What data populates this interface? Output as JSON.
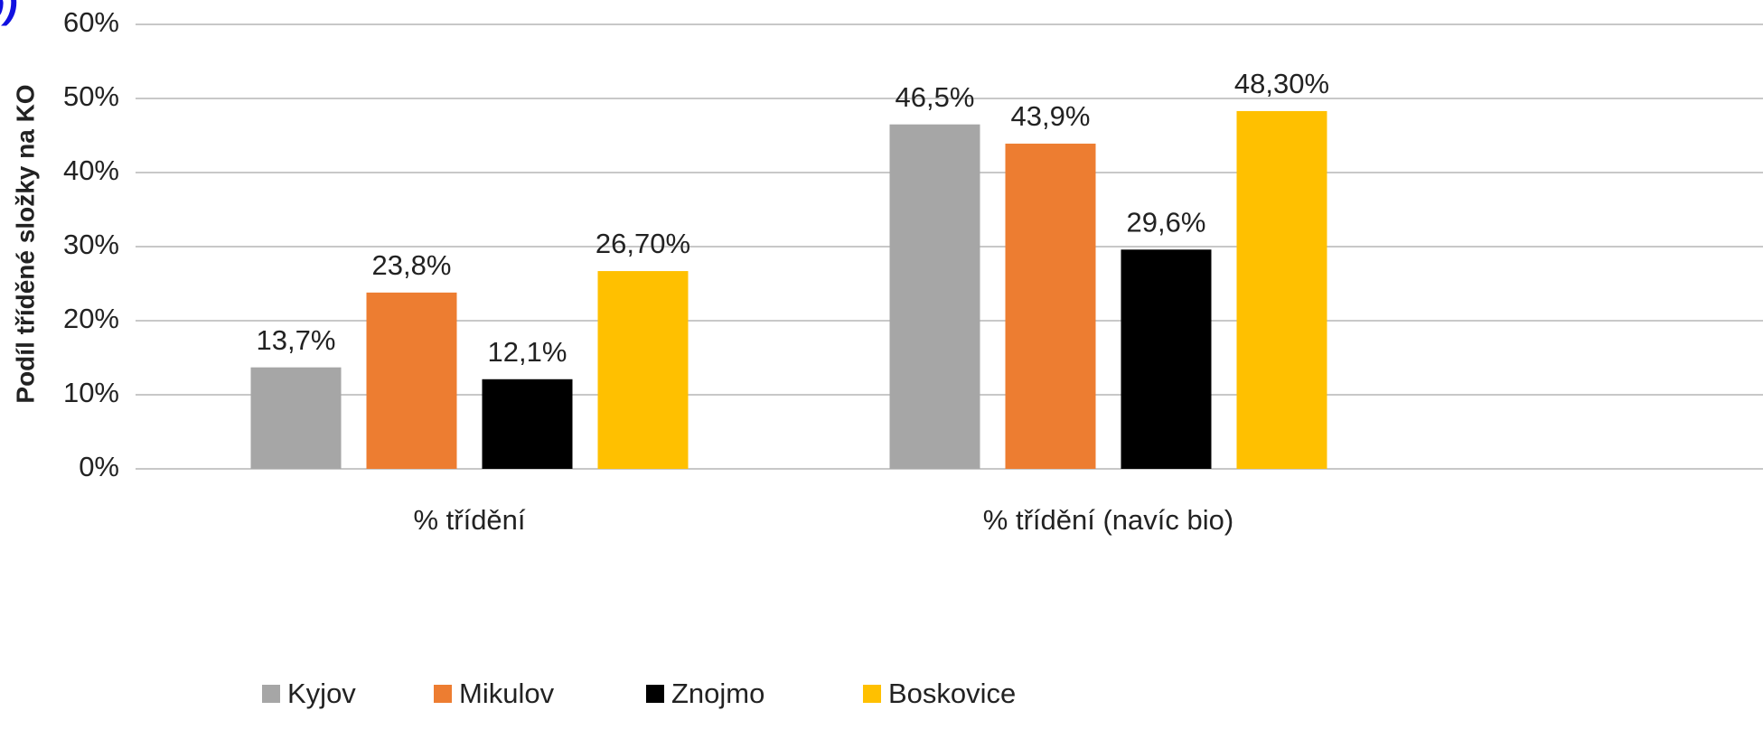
{
  "panel_label": "b)",
  "chart_data": {
    "type": "bar",
    "y_label": "Podíl tříděné složky na KO",
    "categories": [
      "% třídění",
      "% třídění (navíc bio)"
    ],
    "series": [
      {
        "name": "Kyjov",
        "color": "#a6a6a6",
        "values": [
          13.7,
          46.5
        ],
        "value_labels": [
          "13,7%",
          "46,5%"
        ]
      },
      {
        "name": "Mikulov",
        "color": "#ed7d31",
        "values": [
          23.8,
          43.9
        ],
        "value_labels": [
          "23,8%",
          "43,9%"
        ]
      },
      {
        "name": "Znojmo",
        "color": "#000000",
        "values": [
          12.1,
          29.6
        ],
        "value_labels": [
          "12,1%",
          "29,6%"
        ]
      },
      {
        "name": "Boskovice",
        "color": "#ffc000",
        "values": [
          26.7,
          48.3
        ],
        "value_labels": [
          "26,70%",
          "48,30%"
        ]
      }
    ],
    "ylim": [
      0,
      60
    ],
    "yticks": [
      {
        "value": 0,
        "label": "0%"
      },
      {
        "value": 10,
        "label": "10%"
      },
      {
        "value": 20,
        "label": "20%"
      },
      {
        "value": 30,
        "label": "30%"
      },
      {
        "value": 40,
        "label": "40%"
      },
      {
        "value": 50,
        "label": "50%"
      },
      {
        "value": 60,
        "label": "60%"
      }
    ],
    "grid": true,
    "legend": "bottom"
  }
}
